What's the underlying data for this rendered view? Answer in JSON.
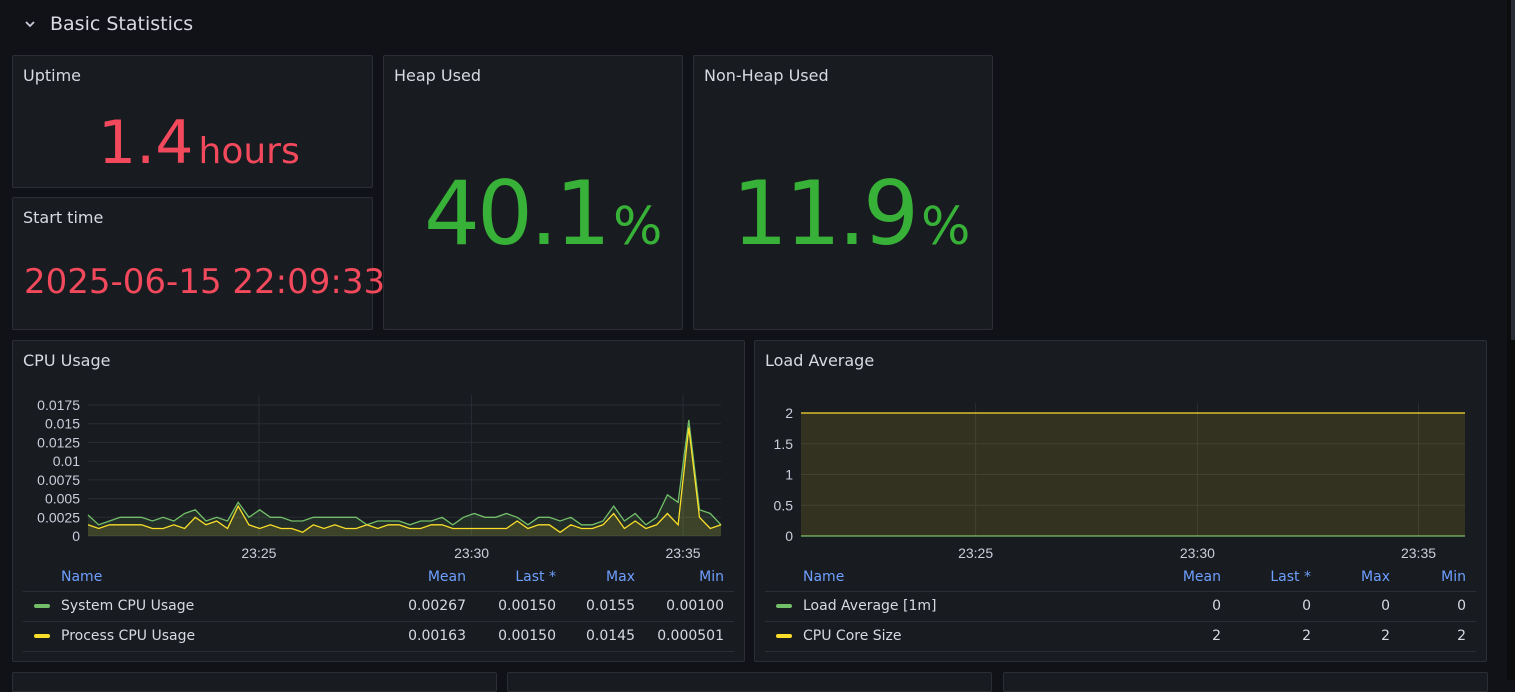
{
  "row": {
    "title": "Basic Statistics"
  },
  "uptime": {
    "title": "Uptime",
    "value": "1.4",
    "unit": "hours"
  },
  "start_time": {
    "title": "Start time",
    "value": "2025-06-15 22:09:33"
  },
  "heap": {
    "title": "Heap Used",
    "value": "40.1",
    "unit": "%"
  },
  "nonheap": {
    "title": "Non-Heap Used",
    "value": "11.9",
    "unit": "%"
  },
  "colors": {
    "red": "#f2495c",
    "green": "#73bf69",
    "yellow": "#fade2a",
    "bignum_green": "#37b137",
    "header_blue": "#6e9fff"
  },
  "cpu": {
    "title": "CPU Usage",
    "legend_headers": [
      "Name",
      "Mean",
      "Last *",
      "Max",
      "Min"
    ],
    "rows": [
      {
        "name": "System CPU Usage",
        "mean": "0.00267",
        "last": "0.00150",
        "max": "0.0155",
        "min": "0.00100",
        "color": "#73bf69"
      },
      {
        "name": "Process CPU Usage",
        "mean": "0.00163",
        "last": "0.00150",
        "max": "0.0145",
        "min": "0.000501",
        "color": "#fade2a"
      }
    ]
  },
  "load": {
    "title": "Load Average",
    "legend_headers": [
      "Name",
      "Mean",
      "Last *",
      "Max",
      "Min"
    ],
    "rows": [
      {
        "name": "Load Average [1m]",
        "mean": "0",
        "last": "0",
        "max": "0",
        "min": "0",
        "color": "#73bf69"
      },
      {
        "name": "CPU Core Size",
        "mean": "2",
        "last": "2",
        "max": "2",
        "min": "2",
        "color": "#fade2a"
      }
    ]
  },
  "chart_data": [
    {
      "type": "line",
      "title": "CPU Usage",
      "y_ticks": [
        "0",
        "0.0025",
        "0.005",
        "0.0075",
        "0.01",
        "0.0125",
        "0.015",
        "0.0175"
      ],
      "x_ticks": [
        "23:25",
        "23:30",
        "23:35"
      ],
      "ylim": [
        0,
        0.0175
      ],
      "series": [
        {
          "name": "System CPU Usage",
          "color": "#73bf69",
          "values": [
            0.0028,
            0.0015,
            0.002,
            0.0025,
            0.0025,
            0.0025,
            0.002,
            0.0025,
            0.002,
            0.003,
            0.0035,
            0.002,
            0.0025,
            0.002,
            0.0045,
            0.0025,
            0.0035,
            0.0025,
            0.0025,
            0.002,
            0.002,
            0.0025,
            0.0025,
            0.0025,
            0.0025,
            0.0025,
            0.0015,
            0.002,
            0.002,
            0.002,
            0.0015,
            0.002,
            0.002,
            0.0025,
            0.0015,
            0.0025,
            0.003,
            0.0025,
            0.0025,
            0.003,
            0.0025,
            0.0015,
            0.0025,
            0.0025,
            0.002,
            0.0025,
            0.0015,
            0.0015,
            0.002,
            0.004,
            0.002,
            0.003,
            0.0015,
            0.0025,
            0.0055,
            0.0045,
            0.0155,
            0.0035,
            0.003,
            0.0015
          ]
        },
        {
          "name": "Process CPU Usage",
          "color": "#fade2a",
          "values": [
            0.0015,
            0.001,
            0.0015,
            0.0015,
            0.0015,
            0.0015,
            0.001,
            0.001,
            0.0015,
            0.001,
            0.0025,
            0.0015,
            0.002,
            0.001,
            0.004,
            0.0015,
            0.001,
            0.0015,
            0.001,
            0.001,
            0.0005,
            0.0015,
            0.001,
            0.0015,
            0.001,
            0.001,
            0.0015,
            0.001,
            0.0015,
            0.0015,
            0.001,
            0.001,
            0.0015,
            0.0015,
            0.001,
            0.001,
            0.001,
            0.001,
            0.001,
            0.001,
            0.002,
            0.001,
            0.0015,
            0.0015,
            0.0005,
            0.0015,
            0.001,
            0.001,
            0.0015,
            0.003,
            0.001,
            0.002,
            0.001,
            0.0015,
            0.003,
            0.0015,
            0.0145,
            0.0025,
            0.001,
            0.0015
          ]
        }
      ]
    },
    {
      "type": "area",
      "title": "Load Average",
      "y_ticks": [
        "0",
        "0.5",
        "1",
        "1.5",
        "2"
      ],
      "x_ticks": [
        "23:25",
        "23:30",
        "23:35"
      ],
      "ylim": [
        0,
        2
      ],
      "series": [
        {
          "name": "Load Average [1m]",
          "color": "#73bf69",
          "values": [
            0,
            0
          ]
        },
        {
          "name": "CPU Core Size",
          "color": "#fade2a",
          "values": [
            2,
            2
          ]
        }
      ]
    }
  ]
}
